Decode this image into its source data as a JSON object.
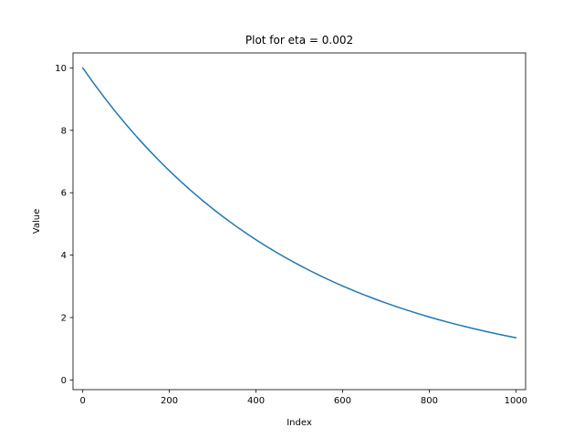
{
  "chart_data": {
    "type": "line",
    "title": "Plot for eta = 0.002",
    "xlabel": "Index",
    "ylabel": "Value",
    "xlim": [
      -22.5,
      1022.5
    ],
    "ylim": [
      -0.31,
      10.48
    ],
    "xticks": [
      0,
      200,
      400,
      600,
      800,
      1000
    ],
    "yticks": [
      0,
      2,
      4,
      6,
      8,
      10
    ],
    "grid": false,
    "series": [
      {
        "color": "#1f77b4",
        "x": [
          0,
          25,
          50,
          75,
          100,
          125,
          150,
          175,
          200,
          225,
          250,
          275,
          300,
          325,
          350,
          375,
          400,
          425,
          450,
          475,
          500,
          525,
          550,
          575,
          600,
          625,
          650,
          675,
          700,
          725,
          750,
          775,
          800,
          825,
          850,
          875,
          900,
          925,
          950,
          975,
          1000
        ],
        "values": [
          10.0,
          9.512,
          9.048,
          8.607,
          8.187,
          7.788,
          7.408,
          7.047,
          6.703,
          6.376,
          6.065,
          5.769,
          5.488,
          5.22,
          4.966,
          4.724,
          4.493,
          4.274,
          4.066,
          3.867,
          3.679,
          3.499,
          3.329,
          3.166,
          3.012,
          2.865,
          2.725,
          2.592,
          2.466,
          2.346,
          2.231,
          2.122,
          2.019,
          1.92,
          1.827,
          1.738,
          1.653,
          1.572,
          1.496,
          1.423,
          1.353
        ]
      }
    ]
  }
}
